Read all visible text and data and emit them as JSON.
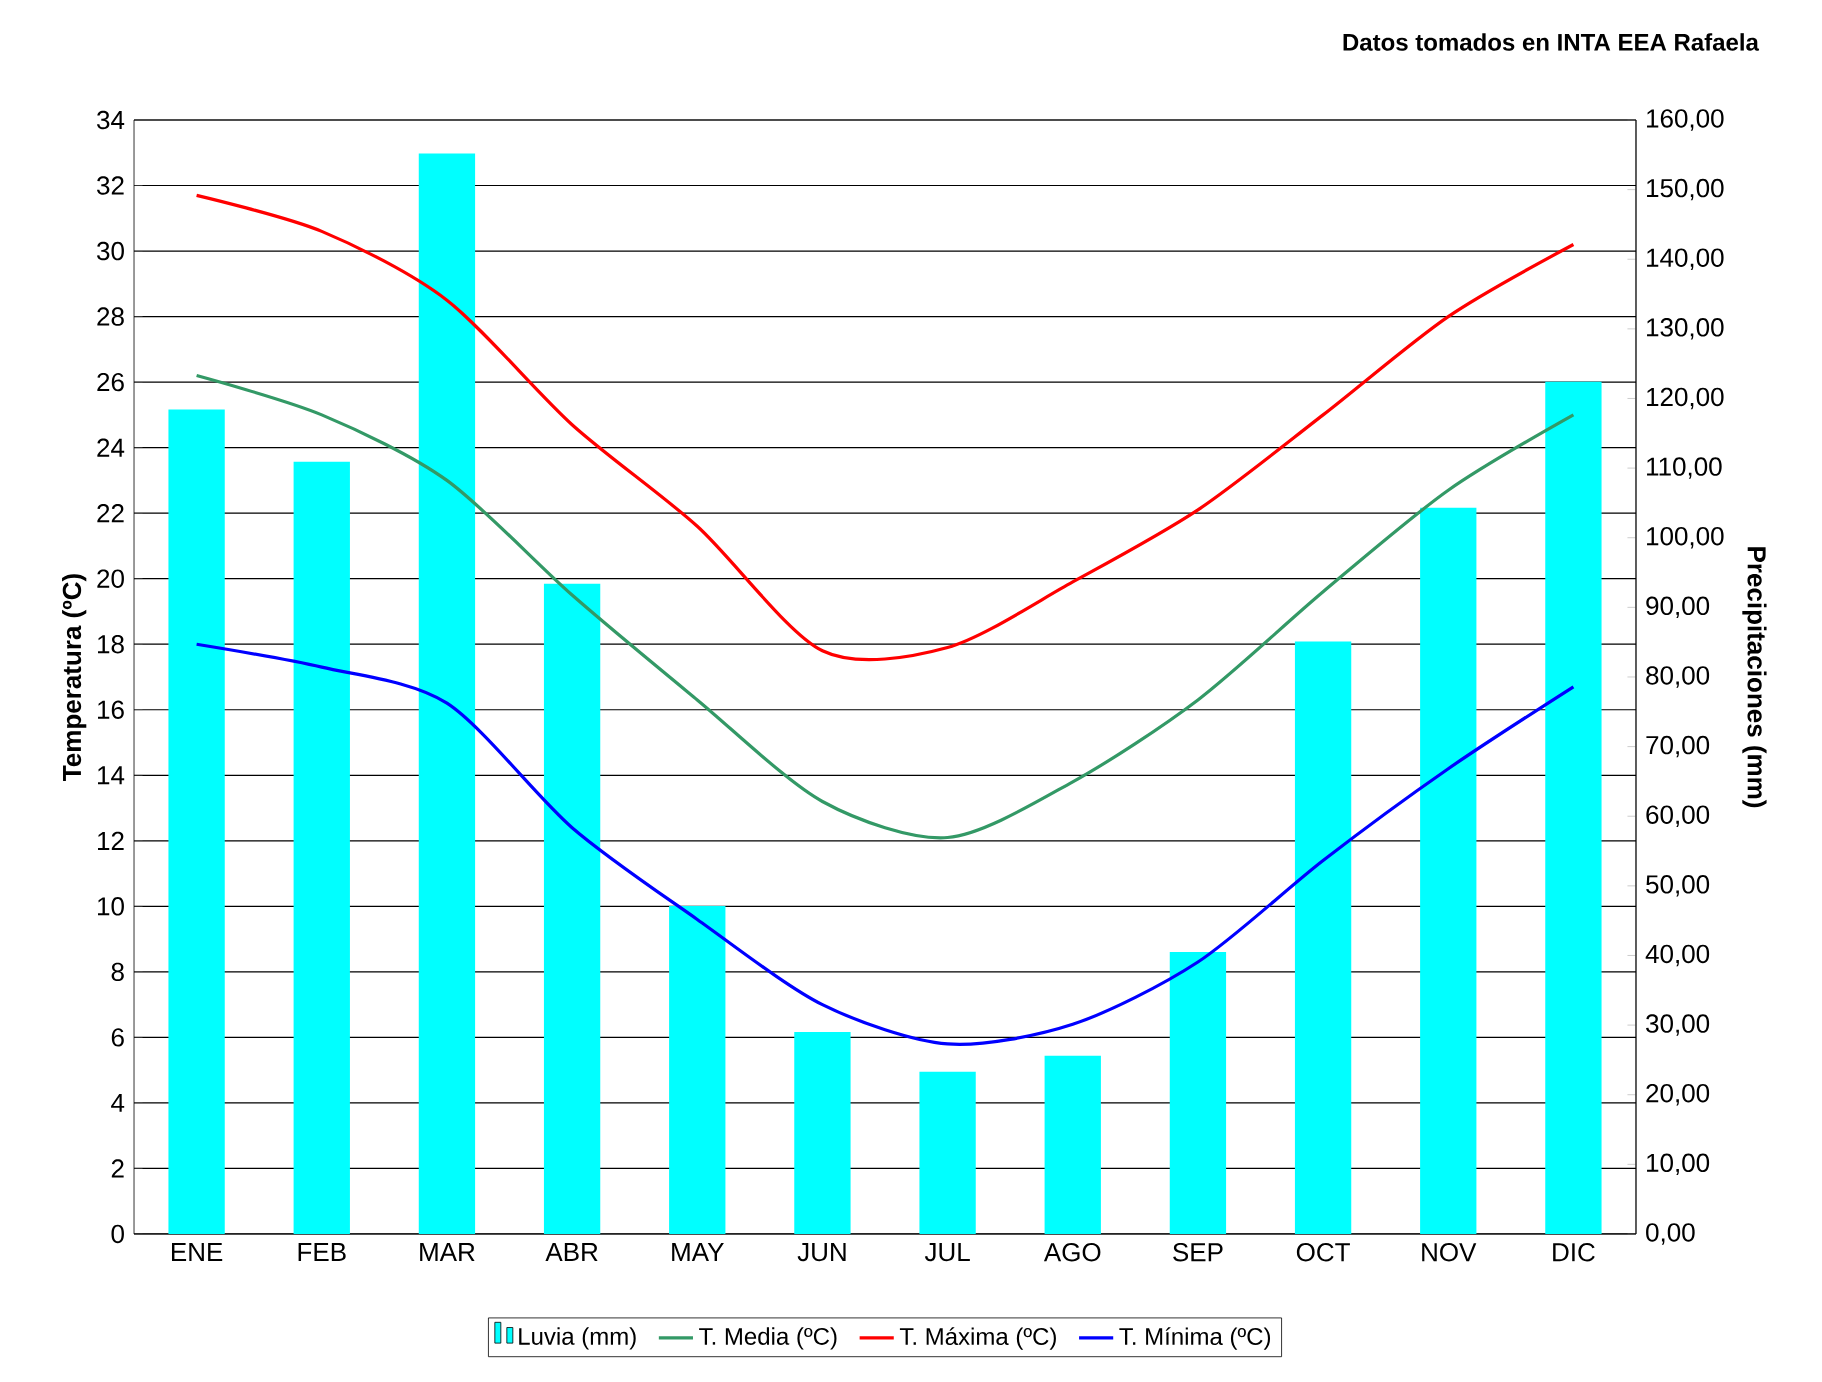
{
  "chart_data": {
    "type": "line",
    "annotations": [
      "Datos tomados en INTA EEA Rafaela"
    ],
    "ylabel": "Temperatura (ºC)",
    "y2label": "Precipitaciones (mm)",
    "categories": [
      "ENE",
      "FEB",
      "MAR",
      "ABR",
      "MAY",
      "JUN",
      "JUL",
      "AGO",
      "SEP",
      "OCT",
      "NOV",
      "DIC"
    ],
    "series": [
      {
        "name": "Luvia (mm)",
        "type": "bar",
        "axis": "y2",
        "color": "#00ffff",
        "values": [
          118.4,
          110.9,
          155.2,
          93.4,
          47.1,
          29.0,
          23.3,
          25.6,
          40.5,
          85.1,
          104.3,
          122.4
        ]
      },
      {
        "name": "T. Media (ºC)",
        "color": "#339966",
        "values": [
          26.2,
          25.0,
          23.0,
          19.5,
          16.3,
          13.2,
          12.1,
          13.8,
          16.3,
          19.6,
          22.7,
          25.0
        ]
      },
      {
        "name": "T. Máxima (ºC)",
        "color": "#ff0000",
        "values": [
          31.7,
          30.6,
          28.5,
          24.7,
          21.6,
          17.8,
          17.9,
          19.9,
          22.1,
          25.0,
          28.0,
          30.2
        ]
      },
      {
        "name": "T. Mínima (ºC)",
        "color": "#0000ff",
        "values": [
          18.0,
          17.3,
          16.2,
          12.4,
          9.6,
          7.0,
          5.8,
          6.4,
          8.3,
          11.4,
          14.2,
          16.7
        ]
      }
    ],
    "ylim": [
      0,
      34
    ],
    "yticks": [
      0,
      2,
      4,
      6,
      8,
      10,
      12,
      14,
      16,
      18,
      20,
      22,
      24,
      26,
      28,
      30,
      32,
      34
    ],
    "y2lim": [
      0,
      160
    ],
    "y2ticks": [
      {
        "value": 0,
        "label": "0,00"
      },
      {
        "value": 10,
        "label": "10,00"
      },
      {
        "value": 20,
        "label": "20,00"
      },
      {
        "value": 30,
        "label": "30,00"
      },
      {
        "value": 40,
        "label": "40,00"
      },
      {
        "value": 50,
        "label": "50,00"
      },
      {
        "value": 60,
        "label": "60,00"
      },
      {
        "value": 70,
        "label": "70,00"
      },
      {
        "value": 80,
        "label": "80,00"
      },
      {
        "value": 90,
        "label": "90,00"
      },
      {
        "value": 100,
        "label": "100,00"
      },
      {
        "value": 110,
        "label": "110,00"
      },
      {
        "value": 120,
        "label": "120,00"
      },
      {
        "value": 130,
        "label": "130,00"
      },
      {
        "value": 140,
        "label": "140,00"
      },
      {
        "value": 150,
        "label": "150,00"
      },
      {
        "value": 160,
        "label": "160,00"
      }
    ],
    "grid": "y",
    "legend": "bottom"
  }
}
